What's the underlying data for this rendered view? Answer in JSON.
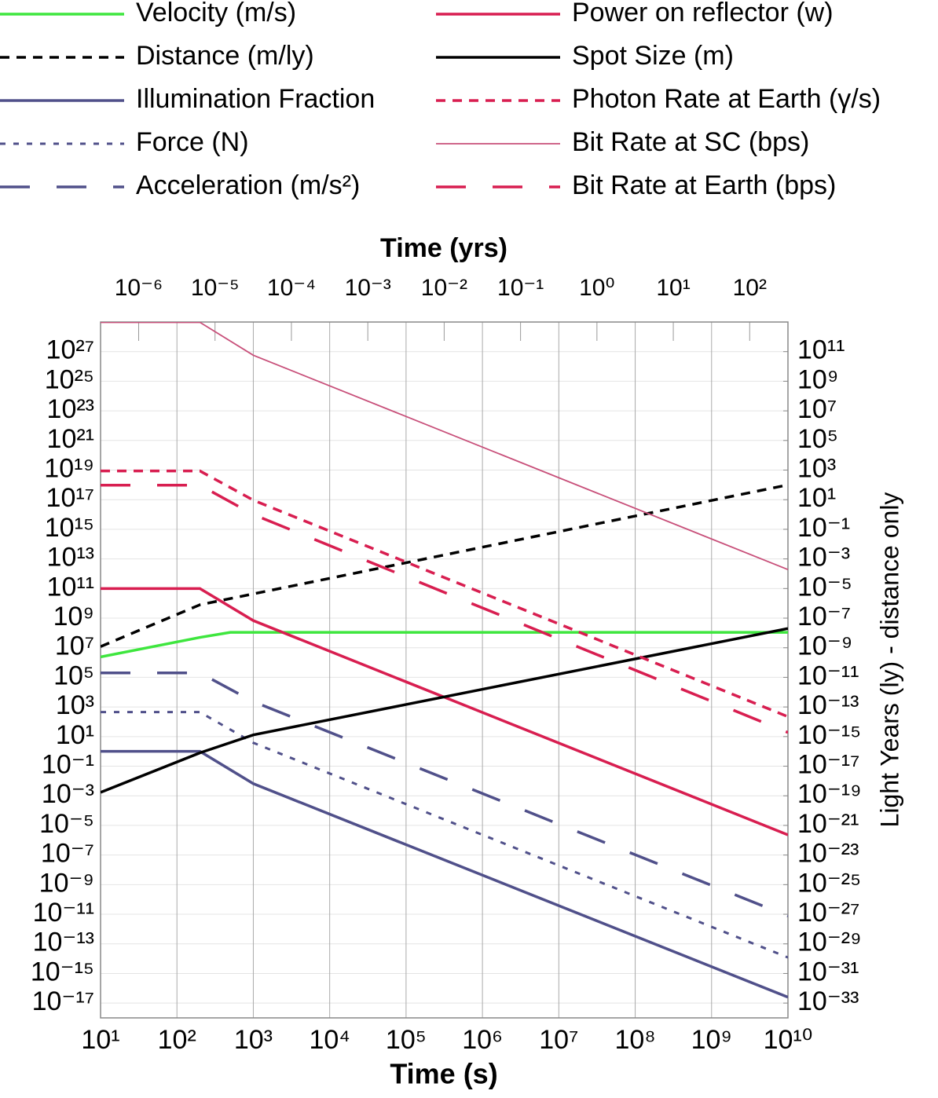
{
  "chart_data": {
    "type": "line",
    "xlabel": "Time (s)",
    "x2label": "Time (yrs)",
    "y2label": "Light Years (ly) - distance only",
    "xscale": "log",
    "yscale": "log",
    "grid": true,
    "legend": "top",
    "xlim": [
      10,
      10000000000
    ],
    "x2lim": [
      3.17e-07,
      317
    ],
    "ylim": [
      1e-18,
      1e+29
    ],
    "y2lim": [
      1e-34,
      10000000000000.0
    ],
    "xticks": [
      {
        "value": 10,
        "label": "10¹"
      },
      {
        "value": 100,
        "label": "10²"
      },
      {
        "value": 1000,
        "label": "10³"
      },
      {
        "value": 10000,
        "label": "10⁴"
      },
      {
        "value": 100000,
        "label": "10⁵"
      },
      {
        "value": 1000000,
        "label": "10⁶"
      },
      {
        "value": 10000000,
        "label": "10⁷"
      },
      {
        "value": 100000000,
        "label": "10⁸"
      },
      {
        "value": 1000000000,
        "label": "10⁹"
      },
      {
        "value": 10000000000,
        "label": "10¹⁰"
      }
    ],
    "x2ticks": [
      {
        "value": 1e-06,
        "label": "10⁻⁶"
      },
      {
        "value": 1e-05,
        "label": "10⁻⁵"
      },
      {
        "value": 0.0001,
        "label": "10⁻⁴"
      },
      {
        "value": 0.001,
        "label": "10⁻³"
      },
      {
        "value": 0.01,
        "label": "10⁻²"
      },
      {
        "value": 0.1,
        "label": "10⁻¹"
      },
      {
        "value": 1,
        "label": "10⁰"
      },
      {
        "value": 10,
        "label": "10¹"
      },
      {
        "value": 100,
        "label": "10²"
      }
    ],
    "yticks": [
      {
        "value": 1e+27,
        "label": "10²⁷"
      },
      {
        "value": 1e+25,
        "label": "10²⁵"
      },
      {
        "value": 1e+23,
        "label": "10²³"
      },
      {
        "value": 1e+21,
        "label": "10²¹"
      },
      {
        "value": 1e+19,
        "label": "10¹⁹"
      },
      {
        "value": 1e+17,
        "label": "10¹⁷"
      },
      {
        "value": 1000000000000000.0,
        "label": "10¹⁵"
      },
      {
        "value": 10000000000000.0,
        "label": "10¹³"
      },
      {
        "value": 100000000000.0,
        "label": "10¹¹"
      },
      {
        "value": 1000000000.0,
        "label": "10⁹"
      },
      {
        "value": 10000000.0,
        "label": "10⁷"
      },
      {
        "value": 100000.0,
        "label": "10⁵"
      },
      {
        "value": 1000.0,
        "label": "10³"
      },
      {
        "value": 10,
        "label": "10¹"
      },
      {
        "value": 0.1,
        "label": "10⁻¹"
      },
      {
        "value": 0.001,
        "label": "10⁻³"
      },
      {
        "value": 1e-05,
        "label": "10⁻⁵"
      },
      {
        "value": 1e-07,
        "label": "10⁻⁷"
      },
      {
        "value": 1e-09,
        "label": "10⁻⁹"
      },
      {
        "value": 1e-11,
        "label": "10⁻¹¹"
      },
      {
        "value": 1e-13,
        "label": "10⁻¹³"
      },
      {
        "value": 1e-15,
        "label": "10⁻¹⁵"
      },
      {
        "value": 1e-17,
        "label": "10⁻¹⁷"
      }
    ],
    "y2ticks": [
      {
        "value": 100000000000.0,
        "label": "10¹¹"
      },
      {
        "value": 1000000000.0,
        "label": "10⁹"
      },
      {
        "value": 10000000.0,
        "label": "10⁷"
      },
      {
        "value": 100000.0,
        "label": "10⁵"
      },
      {
        "value": 1000.0,
        "label": "10³"
      },
      {
        "value": 10,
        "label": "10¹"
      },
      {
        "value": 0.1,
        "label": "10⁻¹"
      },
      {
        "value": 0.001,
        "label": "10⁻³"
      },
      {
        "value": 1e-05,
        "label": "10⁻⁵"
      },
      {
        "value": 1e-07,
        "label": "10⁻⁷"
      },
      {
        "value": 1e-09,
        "label": "10⁻⁹"
      },
      {
        "value": 1e-11,
        "label": "10⁻¹¹"
      },
      {
        "value": 1e-13,
        "label": "10⁻¹³"
      },
      {
        "value": 1e-15,
        "label": "10⁻¹⁵"
      },
      {
        "value": 1e-17,
        "label": "10⁻¹⁷"
      },
      {
        "value": 1e-19,
        "label": "10⁻¹⁹"
      },
      {
        "value": 1e-21,
        "label": "10⁻²¹"
      },
      {
        "value": 1e-23,
        "label": "10⁻²³"
      },
      {
        "value": 1e-25,
        "label": "10⁻²⁵"
      },
      {
        "value": 1e-27,
        "label": "10⁻²⁷"
      },
      {
        "value": 1e-29,
        "label": "10⁻²⁹"
      },
      {
        "value": 1e-31,
        "label": "10⁻³¹"
      },
      {
        "value": 1e-33,
        "label": "10⁻³³"
      }
    ],
    "series": [
      {
        "name": "Velocity (m/s)",
        "color": "#3ee63e",
        "line_style": "solid",
        "x": [
          10,
          200,
          500,
          10000000000
        ],
        "values": [
          2400000,
          50000000,
          110000000,
          110000000
        ]
      },
      {
        "name": "Distance (m/ly)",
        "color": "#000000",
        "line_style": "dashed",
        "axis": "y2",
        "x": [
          10,
          200,
          10000000000
        ],
        "values": [
          1.2e-09,
          8e-07,
          100
        ]
      },
      {
        "name": "Illumination Fraction",
        "color": "#50508a",
        "line_style": "solid",
        "x": [
          10,
          200,
          1000,
          10000000000
        ],
        "values": [
          1,
          1,
          0.0066,
          2.5e-17
        ]
      },
      {
        "name": "Force (N)",
        "color": "#50508a",
        "line_style": "dotted",
        "x": [
          10,
          200,
          1000,
          10000000000
        ],
        "values": [
          450,
          450,
          3.8,
          1.2e-14
        ]
      },
      {
        "name": "Acceleration (m/s²)",
        "color": "#50508a",
        "line_style": "long-dash",
        "x": [
          10,
          200,
          1000,
          10000000000
        ],
        "values": [
          200000,
          200000,
          2300,
          7.6e-12
        ]
      },
      {
        "name": "Power on reflector (w)",
        "color": "#d81e50",
        "line_style": "solid",
        "x": [
          10,
          200,
          1000,
          10000000000
        ],
        "values": [
          100000000000,
          100000000000,
          680000000,
          2.3e-06
        ]
      },
      {
        "name": "Spot Size (m)",
        "color": "#000000",
        "line_style": "solid",
        "x": [
          10,
          200,
          1000,
          10000000000
        ],
        "values": [
          0.0017,
          0.8,
          13,
          200000000
        ]
      },
      {
        "name": "Photon Rate at Earth (γ/s)",
        "color": "#d81e50",
        "line_style": "dashed",
        "x": [
          10,
          200,
          1000,
          10000000000
        ],
        "values": [
          8.7e+18,
          8.7e+18,
          9.3e+16,
          220
        ]
      },
      {
        "name": "Bit Rate at SC (bps)",
        "color": "#c8507a",
        "line_style": "thin",
        "x": [
          10,
          200,
          1000,
          10000000000
        ],
        "values": [
          9.5e+28,
          9.5e+28,
          5.7e+26,
          1900000000000
        ]
      },
      {
        "name": "Bit Rate at Earth (bps)",
        "color": "#d81e50",
        "line_style": "long-dash",
        "x": [
          10,
          200,
          1000,
          10000000000
        ],
        "values": [
          9.5e+17,
          9.5e+17,
          1e+16,
          19
        ]
      }
    ]
  }
}
